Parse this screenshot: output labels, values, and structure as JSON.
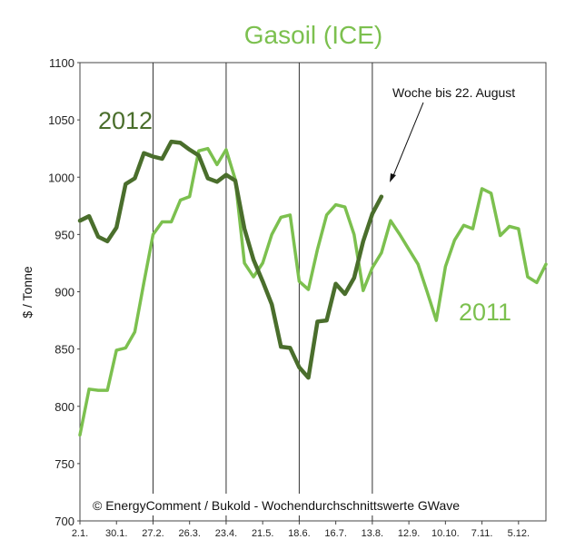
{
  "chart_data": {
    "type": "line",
    "title": "Gasoil (ICE)",
    "ylabel": "$ / Tonne",
    "xlabel": "",
    "ylim": [
      700,
      1100
    ],
    "yticks": [
      700,
      750,
      800,
      850,
      900,
      950,
      1000,
      1050,
      1100
    ],
    "xticks": [
      "2.1.",
      "30.1.",
      "27.2.",
      "26.3.",
      "23.4.",
      "21.5.",
      "18.6.",
      "16.7.",
      "13.8.",
      "12.9.",
      "10.10.",
      "7.11.",
      "5.12."
    ],
    "grid": "vertical lines at 27.2., 23.4., 18.6., 13.8.",
    "series": [
      {
        "name": "2011",
        "color": "#7cc04f",
        "values": [
          775,
          815,
          814,
          814,
          849,
          851,
          865,
          908,
          950,
          961,
          961,
          980,
          983,
          1023,
          1025,
          1011,
          1024,
          998,
          925,
          913,
          925,
          950,
          965,
          967,
          909,
          902,
          937,
          967,
          976,
          974,
          950,
          901,
          921,
          934,
          962,
          950,
          937,
          924,
          900,
          875,
          922,
          945,
          958,
          955,
          990,
          986,
          949,
          957,
          955,
          913,
          908,
          924
        ]
      },
      {
        "name": "2012",
        "color": "#4a6e2c",
        "values": [
          962,
          966,
          948,
          944,
          956,
          994,
          999,
          1021,
          1018,
          1016,
          1031,
          1030,
          1024,
          1019,
          999,
          996,
          1002,
          997,
          955,
          928,
          909,
          889,
          852,
          851,
          834,
          825,
          874,
          875,
          907,
          898,
          912,
          944,
          968,
          983
        ]
      }
    ],
    "annotations": {
      "label_2012": "2012",
      "label_2011": "2011",
      "week_note": "Woche bis 22. August",
      "credit": "© EnergyComment / Bukold - Wochendurchschnittswerte GWave"
    }
  }
}
